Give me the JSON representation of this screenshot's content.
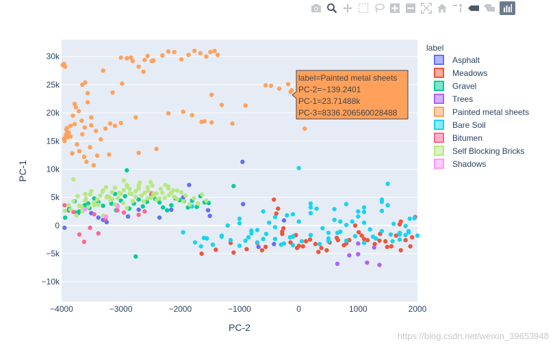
{
  "colors": {
    "Asphalt": "#636efa",
    "Meadows": "#ef553b",
    "Gravel": "#00cc96",
    "Trees": "#ab63fa",
    "Painted metal sheets": "#ffa15a",
    "Bare Soil": "#19d3f3",
    "Bitumen": "#ff6692",
    "Self Blocking Bricks": "#b6e880",
    "Shadows": "#ff97ff"
  },
  "modebar": {
    "icons": [
      "camera-icon",
      "zoom-icon",
      "pan-icon",
      "box-select-icon",
      "lasso-icon",
      "zoom-in-icon",
      "zoom-out-icon",
      "autoscale-icon",
      "home-icon",
      "spike-lines-icon",
      "hover-closest-icon",
      "hover-compare-icon",
      "plotly-logo-icon"
    ]
  },
  "chart_data": {
    "type": "scatter",
    "xlabel": "PC-2",
    "ylabel": "PC-1",
    "xlim": [
      -4000,
      2000
    ],
    "ylim": [
      -13500,
      33000
    ],
    "xticks": [
      -4000,
      -3000,
      -2000,
      -1000,
      0,
      1000,
      2000
    ],
    "xtick_labels": [
      "−4000",
      "−3000",
      "−2000",
      "−1000",
      "0",
      "1000",
      "2000"
    ],
    "yticks": [
      -10000,
      -5000,
      0,
      5000,
      10000,
      15000,
      20000,
      25000,
      30000
    ],
    "ytick_labels": [
      "−10k",
      "−5k",
      "0",
      "5k",
      "10k",
      "15k",
      "20k",
      "25k",
      "30k"
    ],
    "legend": {
      "title": "label",
      "position": "right",
      "entries": [
        "Asphalt",
        "Meadows",
        "Gravel",
        "Trees",
        "Painted metal sheets",
        "Bare Soil",
        "Bitumen",
        "Self Blocking Bricks",
        "Shadows"
      ]
    },
    "series": [
      {
        "name": "Asphalt",
        "x": [
          -3950,
          -3720,
          -3500,
          -3380,
          -3240,
          -3060,
          -2880,
          -2700,
          -2350,
          -2150,
          -1950,
          -1850,
          -1530,
          -950,
          -680,
          -420,
          -250,
          -1500,
          -3880,
          -3300,
          -940
        ],
        "y": [
          -400,
          2200,
          2200,
          1400,
          600,
          3500,
          1600,
          2800,
          1400,
          2800,
          5000,
          7200,
          2700,
          11300,
          -3800,
          -3300,
          900,
          1700,
          2700,
          1000,
          3800
        ]
      },
      {
        "name": "Meadows",
        "x": [
          -1640,
          -1400,
          -1100,
          -880,
          -700,
          -560,
          -420,
          -350,
          -280,
          -140,
          -30,
          70,
          190,
          280,
          380,
          520,
          640,
          760,
          850,
          950,
          1060,
          1160,
          1280,
          1370,
          1460,
          1560,
          1640,
          1720,
          1800,
          1880,
          1960,
          -380,
          -260,
          -50,
          120,
          470,
          800,
          1100,
          1490,
          1720,
          1910,
          -1150,
          -620,
          -280,
          0,
          330,
          660,
          1010,
          1360,
          1700
        ],
        "y": [
          -5000,
          -4300,
          -4800,
          -4200,
          -3100,
          -3800,
          4600,
          3000,
          -1500,
          -3000,
          -4000,
          -3700,
          -2500,
          -3300,
          -4000,
          -3000,
          -2200,
          -3500,
          -2600,
          0,
          -1800,
          -2600,
          -3300,
          -1500,
          -2800,
          -3700,
          -1800,
          700,
          -2600,
          -3700,
          1500,
          2100,
          -500,
          -1700,
          -2800,
          -4400,
          -3200,
          -2400,
          -3800,
          -4400,
          -2100,
          -3100,
          -4400,
          -1100,
          -3600,
          -4700,
          -2600,
          -1200,
          -2700,
          200
        ]
      },
      {
        "name": "Gravel",
        "x": [
          -3940,
          -3870,
          -3780,
          -3700,
          -3610,
          -3530,
          -3450,
          -3380,
          -3300,
          -3230,
          -3160,
          -3080,
          -3000,
          -2930,
          -2860,
          -2780,
          -2700,
          -2630,
          -2560,
          -2490,
          -2420,
          -2350,
          -2290,
          -2220,
          -2150,
          -2080,
          -2010,
          -1940,
          -1870,
          -1800,
          -1720,
          -1660,
          -1590,
          -1520,
          -1100,
          -2750,
          -3100,
          -2900,
          -3550,
          -3750
        ],
        "y": [
          1400,
          3000,
          4300,
          2500,
          3600,
          3100,
          4800,
          4200,
          3500,
          5100,
          3900,
          2700,
          4400,
          5200,
          3000,
          3900,
          4600,
          3400,
          4200,
          5500,
          4700,
          4100,
          3200,
          2700,
          3600,
          4800,
          4500,
          4300,
          3200,
          4400,
          3300,
          5200,
          4100,
          4000,
          7000,
          -5500,
          5600,
          9800,
          3900,
          2300
        ]
      },
      {
        "name": "Trees",
        "x": [
          650,
          1000,
          1150,
          1360,
          1270,
          1000,
          850
        ],
        "y": [
          -6800,
          -5100,
          -6600,
          -7000,
          -3900,
          -3200,
          -5300
        ]
      },
      {
        "name": "Painted metal sheets",
        "x": [
          -3980,
          -3960,
          -3940,
          -3920,
          -3900,
          -3880,
          -3850,
          -3810,
          -3760,
          -3710,
          -3660,
          -3610,
          -3560,
          -3500,
          -3420,
          -3340,
          -3260,
          -3180,
          -3100,
          -3000,
          -2900,
          -2800,
          -2700,
          -2600,
          -2550,
          -2480,
          -2300,
          -2200,
          -2100,
          -1980,
          -1860,
          -1760,
          -1660,
          -1560,
          -1490,
          -1420,
          -1370,
          -3780,
          -3700,
          -3620,
          -3580,
          -3520,
          -3460,
          -3400,
          -3960,
          -3950,
          -3930,
          -3910,
          -3600,
          -3300,
          -3140,
          -2980,
          -2830,
          -2620,
          -2450,
          -1470,
          -1590,
          -3850,
          -3740,
          -3650,
          -3500,
          -3200,
          -3000,
          -2750,
          -2400,
          -2200,
          -1950,
          -1800,
          -1640,
          -1470,
          -1300,
          -1120,
          -560,
          -470,
          -330,
          -180,
          -120,
          -900,
          100,
          -2700,
          -3650,
          -3780,
          -3560,
          -3920,
          -3820
        ],
        "y": [
          28500,
          28700,
          28200,
          16200,
          15700,
          16500,
          17700,
          19500,
          21000,
          20300,
          18600,
          17400,
          21900,
          19200,
          16800,
          15300,
          17200,
          18100,
          17700,
          29800,
          29700,
          29200,
          28200,
          29400,
          30100,
          29200,
          30200,
          30900,
          30800,
          29500,
          30300,
          31000,
          30600,
          30000,
          30800,
          31000,
          30300,
          18000,
          13200,
          12200,
          11300,
          13900,
          10700,
          12400,
          15400,
          15000,
          15900,
          17300,
          25400,
          27500,
          23600,
          25200,
          29800,
          27300,
          29300,
          23200,
          18500,
          15800,
          14400,
          16200,
          17800,
          12600,
          18200,
          19200,
          13600,
          19900,
          20200,
          19600,
          18400,
          18300,
          21400,
          18100,
          24900,
          24800,
          24300,
          25100,
          24000,
          21300,
          17200,
          12900,
          25000,
          21600,
          23500,
          17000,
          12800
        ]
      },
      {
        "name": "Bare Soil",
        "x": [
          -1750,
          -1600,
          -1450,
          -1300,
          -1150,
          -1000,
          -850,
          -700,
          -550,
          -400,
          -250,
          -100,
          50,
          200,
          350,
          500,
          650,
          800,
          950,
          1100,
          1250,
          1400,
          1550,
          1700,
          1850,
          2000,
          -1200,
          -1000,
          -800,
          -600,
          -400,
          -200,
          0,
          200,
          400,
          600,
          800,
          1000,
          1200,
          1400,
          1600,
          1800,
          -1650,
          -1300,
          -1000,
          -700,
          -400,
          -100,
          200,
          500,
          800,
          1100,
          1400,
          1700,
          1950,
          -900,
          -500,
          -100,
          300,
          700,
          1100,
          1500,
          1850,
          -300,
          200,
          600,
          1000,
          1400,
          1800,
          -800,
          0,
          700,
          1500,
          -1800,
          -1550,
          -1950,
          -600,
          -100,
          500,
          1100,
          1700,
          -150,
          900,
          1300,
          1580,
          1870
        ],
        "y": [
          -3000,
          -2200,
          -3400,
          -1800,
          -2600,
          -3600,
          -2100,
          -3000,
          -1500,
          -2400,
          -3200,
          -2000,
          -2800,
          -1700,
          -3300,
          -2300,
          -1300,
          -2700,
          -1900,
          -3100,
          -2000,
          -1000,
          -1600,
          -2500,
          -1200,
          -1800,
          0,
          1200,
          -900,
          2500,
          -300,
          1800,
          700,
          2200,
          -500,
          2900,
          100,
          1600,
          -700,
          2600,
          300,
          -100,
          -3700,
          -2000,
          400,
          -800,
          1500,
          -1900,
          3200,
          -1300,
          3800,
          500,
          4600,
          -1300,
          1300,
          -2700,
          500,
          2000,
          3000,
          700,
          2400,
          3600,
          -1000,
          -3400,
          3900,
          1000,
          2500,
          4200,
          -1700,
          -1400,
          10200,
          -1100,
          7400,
          3400,
          -2300,
          -1200,
          -2400,
          -3500,
          -2800,
          3200,
          -1600,
          -2100,
          700,
          -2300,
          -2800,
          1200
        ]
      },
      {
        "name": "Bitumen",
        "x": [
          -3950,
          -3800,
          -3700,
          -3620,
          -3520,
          -3450,
          -3380,
          -3260,
          -3060,
          -2950,
          -2600,
          -2700,
          -2480
        ],
        "y": [
          3600,
          2400,
          -1600,
          -2900,
          -400,
          2000,
          -1400,
          1200,
          2700,
          2300,
          2500,
          1900,
          5700
        ]
      },
      {
        "name": "Self Blocking Bricks",
        "x": [
          -3940,
          -3880,
          -3800,
          -3730,
          -3660,
          -3590,
          -3520,
          -3450,
          -3380,
          -3310,
          -3240,
          -3170,
          -3100,
          -3030,
          -2960,
          -2890,
          -2820,
          -2750,
          -2680,
          -2610,
          -2540,
          -2470,
          -2400,
          -2330,
          -2260,
          -2190,
          -2120,
          -2050,
          -1980,
          -1910,
          -1840,
          -1770,
          -1700,
          -1630,
          -1560,
          -3700,
          -3600,
          -3500,
          -3400,
          -3300,
          -3200,
          -3100,
          -3000,
          -2900,
          -2800,
          -2700,
          -2600,
          -2500,
          -2400,
          -2300,
          -2200,
          -2100,
          -3650,
          -3550,
          -3450,
          -3350,
          -3250,
          -3150,
          -3050,
          -2950,
          -2850,
          -2750,
          -2650,
          -2550,
          -2450,
          -2350,
          -2250,
          -2150,
          -2050,
          -3850,
          -3750,
          -2900,
          -2500,
          -3300,
          -1950,
          -3800,
          -3600,
          -2950,
          -2700,
          -2450,
          -2200,
          -3450,
          -3150,
          -2850,
          -2550
        ],
        "y": [
          2600,
          3600,
          4300,
          5200,
          3300,
          4800,
          5500,
          4100,
          3700,
          6000,
          5000,
          4500,
          6700,
          5800,
          4000,
          6900,
          5600,
          5100,
          7600,
          4300,
          6200,
          7100,
          5700,
          6500,
          4900,
          5400,
          6200,
          4700,
          5900,
          5300,
          3700,
          4800,
          3900,
          5500,
          4400,
          3500,
          4400,
          6100,
          4600,
          6200,
          5100,
          3700,
          5600,
          7200,
          4300,
          6600,
          5800,
          7700,
          4500,
          5800,
          6600,
          5100,
          2500,
          3300,
          3900,
          5300,
          6800,
          5900,
          4900,
          6300,
          5700,
          6100,
          5300,
          6800,
          5600,
          4800,
          7200,
          5800,
          6200,
          2800,
          1800,
          3100,
          4900,
          1700,
          4300,
          8200,
          5600,
          8000,
          7100,
          5300,
          6900,
          3600,
          4700,
          6500,
          4800
        ]
      },
      {
        "name": "Shadows",
        "x": [
          -3600,
          -3250,
          -3050
        ],
        "y": [
          2900,
          1600,
          3400
        ]
      }
    ],
    "hover": {
      "label": "label=Painted metal sheets",
      "pc2": "PC-2=−139.2401",
      "pc1": "PC-1=23.71488k",
      "pc3": "PC-3=8336.206560028488",
      "x": -139.24,
      "y": 23714.88,
      "series": "Painted metal sheets"
    },
    "watermark": "https://blog.csdn.net/weixin_39653948"
  }
}
